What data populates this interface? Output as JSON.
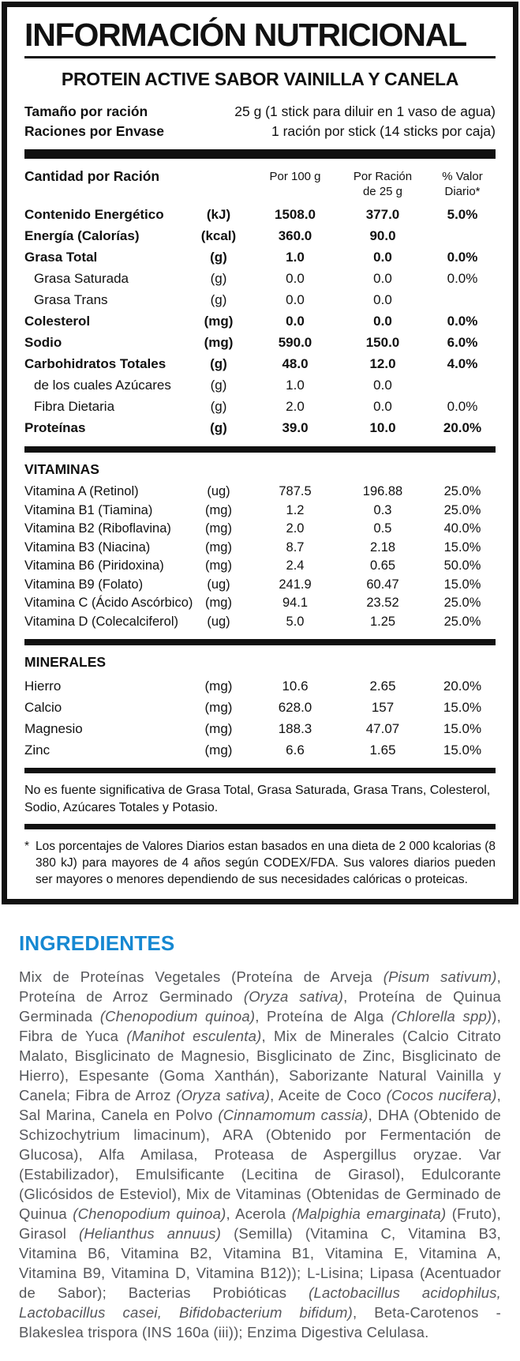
{
  "colors": {
    "panel_border": "#111111",
    "accent_blue": "#1688d2",
    "ingredients_text": "#55565a"
  },
  "panel": {
    "title": "INFORMACIÓN NUTRICIONAL",
    "subtitle": "PROTEIN ACTIVE SABOR VAINILLA Y CANELA",
    "serving_rows": [
      {
        "label": "Tamaño por ración",
        "value": "25 g (1 stick para diluir en 1 vaso de agua)"
      },
      {
        "label": "Raciones por Envase",
        "value": "1 ración por stick (14 sticks por caja)"
      }
    ],
    "table": {
      "header": {
        "amount_label": "Cantidad por Ración",
        "per100": "Por 100 g",
        "per25_line1": "Por Ración",
        "per25_line2": "de 25 g",
        "dv_line1": "% Valor",
        "dv_line2": "Diario*"
      },
      "main_rows": [
        {
          "label": "Contenido Energético",
          "unit": "(kJ)",
          "per100": "1508.0",
          "per25": "377.0",
          "dv": "5.0%",
          "bold": true,
          "indent": false
        },
        {
          "label": "Energía (Calorías)",
          "unit": "(kcal)",
          "per100": "360.0",
          "per25": "90.0",
          "dv": "",
          "bold": true,
          "indent": false
        },
        {
          "label": "Grasa Total",
          "unit": "(g)",
          "per100": "1.0",
          "per25": "0.0",
          "dv": "0.0%",
          "bold": true,
          "indent": false
        },
        {
          "label": "Grasa Saturada",
          "unit": "(g)",
          "per100": "0.0",
          "per25": "0.0",
          "dv": "0.0%",
          "bold": false,
          "indent": true
        },
        {
          "label": "Grasa Trans",
          "unit": "(g)",
          "per100": "0.0",
          "per25": "0.0",
          "dv": "",
          "bold": false,
          "indent": true
        },
        {
          "label": "Colesterol",
          "unit": "(mg)",
          "per100": "0.0",
          "per25": "0.0",
          "dv": "0.0%",
          "bold": true,
          "indent": false
        },
        {
          "label": "Sodio",
          "unit": "(mg)",
          "per100": "590.0",
          "per25": "150.0",
          "dv": "6.0%",
          "bold": true,
          "indent": false
        },
        {
          "label": "Carbohidratos Totales",
          "unit": "(g)",
          "per100": "48.0",
          "per25": "12.0",
          "dv": "4.0%",
          "bold": true,
          "indent": false
        },
        {
          "label": "de los cuales Azúcares",
          "unit": "(g)",
          "per100": "1.0",
          "per25": "0.0",
          "dv": "",
          "bold": false,
          "indent": true
        },
        {
          "label": "Fibra Dietaria",
          "unit": "(g)",
          "per100": "2.0",
          "per25": "0.0",
          "dv": "0.0%",
          "bold": false,
          "indent": true
        },
        {
          "label": "Proteínas",
          "unit": "(g)",
          "per100": "39.0",
          "per25": "10.0",
          "dv": "20.0%",
          "bold": true,
          "indent": false
        }
      ],
      "vitamins_title": "VITAMINAS",
      "vitamins_rows": [
        {
          "label": "Vitamina A (Retinol)",
          "unit": "(ug)",
          "per100": "787.5",
          "per25": "196.88",
          "dv": "25.0%",
          "bold": false,
          "indent": false
        },
        {
          "label": "Vitamina B1 (Tiamina)",
          "unit": "(mg)",
          "per100": "1.2",
          "per25": "0.3",
          "dv": "25.0%",
          "bold": false,
          "indent": false
        },
        {
          "label": "Vitamina B2 (Riboflavina)",
          "unit": "(mg)",
          "per100": "2.0",
          "per25": "0.5",
          "dv": "40.0%",
          "bold": false,
          "indent": false
        },
        {
          "label": "Vitamina B3 (Niacina)",
          "unit": "(mg)",
          "per100": "8.7",
          "per25": "2.18",
          "dv": "15.0%",
          "bold": false,
          "indent": false
        },
        {
          "label": "Vitamina B6 (Piridoxina)",
          "unit": "(mg)",
          "per100": "2.4",
          "per25": "0.65",
          "dv": "50.0%",
          "bold": false,
          "indent": false
        },
        {
          "label": "Vitamina B9 (Folato)",
          "unit": "(ug)",
          "per100": "241.9",
          "per25": "60.47",
          "dv": "15.0%",
          "bold": false,
          "indent": false
        },
        {
          "label": "Vitamina C (Ácido Ascórbico)",
          "unit": "(mg)",
          "per100": "94.1",
          "per25": "23.52",
          "dv": "25.0%",
          "bold": false,
          "indent": false
        },
        {
          "label": "Vitamina D (Colecalciferol)",
          "unit": "(ug)",
          "per100": "5.0",
          "per25": "1.25",
          "dv": "25.0%",
          "bold": false,
          "indent": false
        }
      ],
      "minerals_title": "MINERALES",
      "minerals_rows": [
        {
          "label": "Hierro",
          "unit": "(mg)",
          "per100": "10.6",
          "per25": "2.65",
          "dv": "20.0%",
          "bold": false,
          "indent": false
        },
        {
          "label": "Calcio",
          "unit": "(mg)",
          "per100": "628.0",
          "per25": "157",
          "dv": "15.0%",
          "bold": false,
          "indent": false
        },
        {
          "label": "Magnesio",
          "unit": "(mg)",
          "per100": "188.3",
          "per25": "47.07",
          "dv": "15.0%",
          "bold": false,
          "indent": false
        },
        {
          "label": "Zinc",
          "unit": "(mg)",
          "per100": "6.6",
          "per25": "1.65",
          "dv": "15.0%",
          "bold": false,
          "indent": false
        }
      ]
    },
    "note": "No es fuente significativa de Grasa Total, Grasa Saturada, Grasa Trans, Colesterol, Sodio, Azúcares Totales y Potasio.",
    "footnote_mark": "*",
    "footnote": "Los porcentajes de Valores Diarios estan basados en una dieta de 2 000 kcalorias (8 380 kJ) para mayores de 4 años según CODEX/FDA. Sus valores diarios pueden ser mayores o menores dependiendo de sus necesidades calóricas o proteicas."
  },
  "ingredients": {
    "heading": "INGREDIENTES",
    "segments": [
      {
        "text": "Mix de Proteínas Vegetales (Proteína de Arveja ",
        "italic": false
      },
      {
        "text": "(Pisum sativum)",
        "italic": true
      },
      {
        "text": ", Proteína de Arroz Germinado ",
        "italic": false
      },
      {
        "text": "(Oryza sativa)",
        "italic": true
      },
      {
        "text": ", Proteína de Quinua Germinada ",
        "italic": false
      },
      {
        "text": "(Chenopodium quinoa)",
        "italic": true
      },
      {
        "text": ", Proteína de Alga ",
        "italic": false
      },
      {
        "text": "(Chlorella spp)",
        "italic": true
      },
      {
        "text": "), Fibra de Yuca ",
        "italic": false
      },
      {
        "text": "(Manihot esculenta)",
        "italic": true
      },
      {
        "text": ", Mix de Minerales (Calcio Citrato Malato, Bisglicinato de Magnesio, Bisglicinato de Zinc, Bisglicinato de Hierro), Espesante (Goma Xanthán), Saborizante Natural Vainilla y Canela; Fibra de Arroz ",
        "italic": false
      },
      {
        "text": "(Oryza sativa)",
        "italic": true
      },
      {
        "text": ", Aceite de Coco ",
        "italic": false
      },
      {
        "text": "(Cocos nucifera)",
        "italic": true
      },
      {
        "text": ", Sal Marina, Canela en Polvo ",
        "italic": false
      },
      {
        "text": "(Cinnamomum cassia)",
        "italic": true
      },
      {
        "text": ", DHA (Obtenido de Schizochytrium limacinum), ARA (Obtenido por Fermentación de Glucosa), Alfa Amilasa, Proteasa de Aspergillus oryzae. Var (Estabilizador), Emulsificante (Lecitina de Girasol), Edulcorante (Glicósidos de Esteviol), Mix de Vitaminas (Obtenidas de Germinado de Quinua ",
        "italic": false
      },
      {
        "text": "(Chenopodium quinoa)",
        "italic": true
      },
      {
        "text": ", Acerola ",
        "italic": false
      },
      {
        "text": "(Malpighia emarginata)",
        "italic": true
      },
      {
        "text": " (Fruto), Girasol ",
        "italic": false
      },
      {
        "text": "(Helianthus annuus)",
        "italic": true
      },
      {
        "text": " (Semilla) (Vitamina C, Vitamina B3, Vitamina B6, Vitamina B2, Vitamina B1, Vitamina E, Vitamina A, Vitamina B9, Vitamina D, Vitamina B12)); L-Lisina; Lipasa (Acentuador de Sabor); Bacterias Probióticas ",
        "italic": false
      },
      {
        "text": "(Lactobacillus acidophilus, Lactobacillus casei, Bifidobacterium bifidum)",
        "italic": true
      },
      {
        "text": ", Beta-Carotenos - Blakeslea trispora (INS 160a (iii)); Enzima Digestiva Celulasa.",
        "italic": false
      }
    ]
  }
}
